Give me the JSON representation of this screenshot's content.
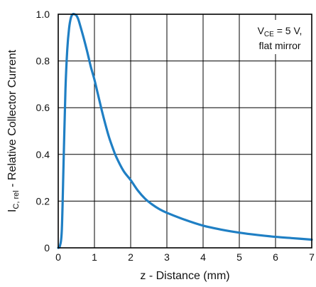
{
  "chart_data": {
    "type": "line",
    "xlabel": "z - Distance (mm)",
    "ylabel": {
      "main": "I",
      "sub": "C, rel",
      "rest": " - Relative Collector Current"
    },
    "xlim": [
      0,
      7
    ],
    "ylim": [
      0,
      1.0
    ],
    "x_ticks": [
      0,
      1,
      2,
      3,
      4,
      5,
      6,
      7
    ],
    "y_ticks": [
      0,
      0.2,
      0.4,
      0.6,
      0.8,
      1.0
    ],
    "x_tick_labels": [
      "0",
      "1",
      "2",
      "3",
      "4",
      "5",
      "6",
      "7"
    ],
    "y_tick_labels": [
      "0",
      "0.2",
      "0.4",
      "0.6",
      "0.8",
      "1.0"
    ],
    "grid": true,
    "annotation": {
      "line1_main": "V",
      "line1_sub": "CE",
      "line1_rest": " = 5 V,",
      "line2": "flat mirror"
    },
    "series": [
      {
        "color": "#1f7fc4",
        "x": [
          0.0,
          0.05,
          0.1,
          0.15,
          0.2,
          0.25,
          0.3,
          0.35,
          0.4,
          0.45,
          0.5,
          0.55,
          0.6,
          0.7,
          0.8,
          0.9,
          1.0,
          1.1,
          1.2,
          1.3,
          1.4,
          1.5,
          1.6,
          1.8,
          2.0,
          2.2,
          2.4,
          2.6,
          2.8,
          3.0,
          3.5,
          4.0,
          4.5,
          5.0,
          5.5,
          6.0,
          6.5,
          7.0
        ],
        "y": [
          0.0,
          0.01,
          0.08,
          0.38,
          0.68,
          0.85,
          0.94,
          0.985,
          1.0,
          1.0,
          0.995,
          0.98,
          0.955,
          0.9,
          0.84,
          0.775,
          0.72,
          0.655,
          0.59,
          0.53,
          0.475,
          0.43,
          0.39,
          0.33,
          0.29,
          0.245,
          0.21,
          0.185,
          0.165,
          0.15,
          0.12,
          0.095,
          0.078,
          0.065,
          0.055,
          0.047,
          0.041,
          0.035
        ]
      }
    ]
  }
}
